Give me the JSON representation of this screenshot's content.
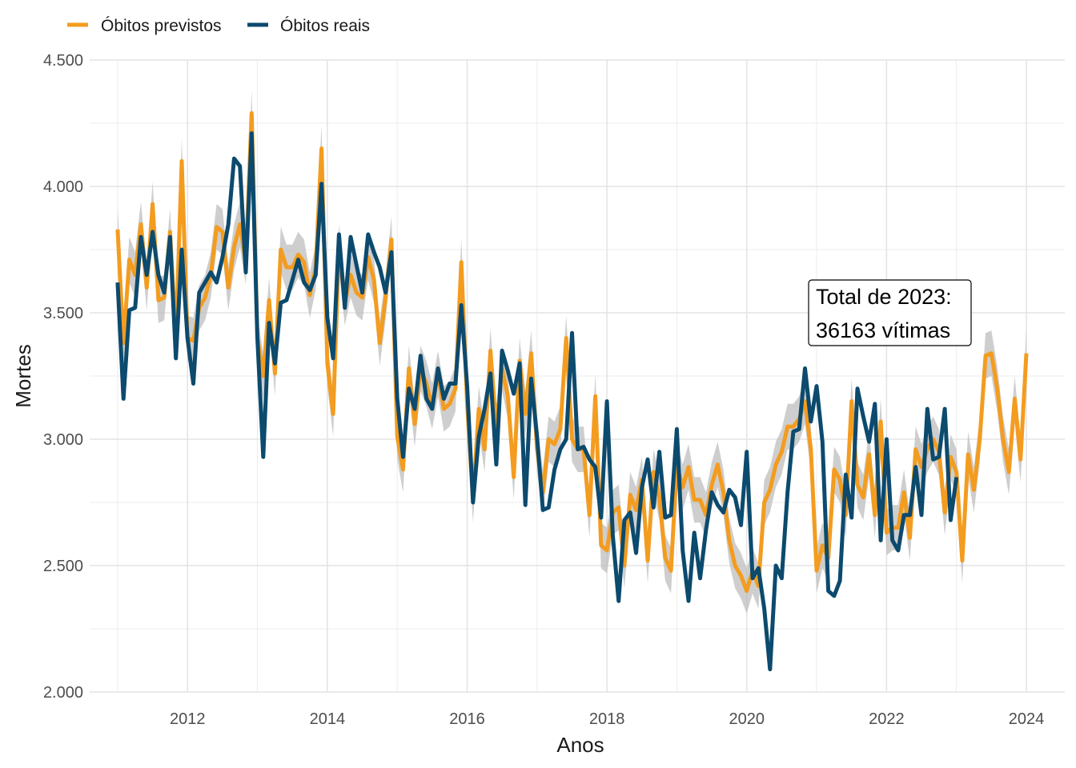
{
  "chart_data": {
    "type": "line",
    "xlabel": "Anos",
    "ylabel": "Mortes",
    "xlim": [
      2010.6,
      2024.55
    ],
    "ylim": [
      2000,
      4500
    ],
    "x_ticks": [
      2012,
      2014,
      2016,
      2018,
      2020,
      2022,
      2024
    ],
    "y_ticks": [
      2000,
      2500,
      3000,
      3500,
      4000,
      4500
    ],
    "y_tick_labels": [
      "2.000",
      "2.500",
      "3.000",
      "3.500",
      "4.000",
      "4.500"
    ],
    "grid": true,
    "legend_position": "top-left",
    "x_start": "2011-01",
    "x_step": "monthly",
    "series": [
      {
        "name": "Óbitos previstos",
        "color": "#F39C1F",
        "values": [
          3830,
          3380,
          3710,
          3650,
          3850,
          3600,
          3930,
          3550,
          3560,
          3820,
          3400,
          4100,
          3400,
          3390,
          3520,
          3560,
          3650,
          3840,
          3820,
          3600,
          3760,
          3850,
          3700,
          4290,
          3400,
          3250,
          3550,
          3260,
          3750,
          3680,
          3680,
          3730,
          3700,
          3570,
          3680,
          4150,
          3300,
          3100,
          3760,
          3540,
          3650,
          3580,
          3560,
          3720,
          3630,
          3380,
          3560,
          3790,
          3010,
          2880,
          3280,
          3060,
          3280,
          3220,
          3130,
          3260,
          3120,
          3140,
          3200,
          3700,
          3140,
          2760,
          3120,
          2960,
          3350,
          3040,
          3280,
          3170,
          2850,
          3310,
          3100,
          3340,
          2960,
          2790,
          3000,
          2980,
          3040,
          3400,
          3000,
          2960,
          2960,
          2700,
          3170,
          2580,
          2560,
          2710,
          2730,
          2500,
          2780,
          2720,
          2840,
          2520,
          2870,
          2770,
          2530,
          2480,
          2900,
          2810,
          2890,
          2760,
          2760,
          2700,
          2820,
          2900,
          2790,
          2600,
          2500,
          2460,
          2400,
          2480,
          2420,
          2750,
          2800,
          2900,
          2950,
          3050,
          3050,
          3080,
          3150,
          2960,
          2480,
          2580,
          2530,
          2880,
          2840,
          2700,
          3150,
          2820,
          2770,
          2940,
          2700,
          3070,
          2630,
          2650,
          2650,
          2790,
          2610,
          2960,
          2890,
          2960,
          3000,
          2950,
          2710,
          2930,
          2870,
          2520,
          2940,
          2800,
          3000,
          3330,
          3340,
          3200,
          3000,
          2870,
          3160,
          2920,
          3340
        ]
      },
      {
        "name": "Óbitos reais",
        "color": "#0C4A6E",
        "values": [
          3620,
          3160,
          3510,
          3520,
          3800,
          3650,
          3820,
          3650,
          3580,
          3800,
          3320,
          3750,
          3400,
          3220,
          3580,
          3620,
          3660,
          3620,
          3720,
          3850,
          4110,
          4080,
          3660,
          4210,
          3400,
          2930,
          3460,
          3300,
          3540,
          3550,
          3630,
          3710,
          3620,
          3590,
          3650,
          4010,
          3480,
          3320,
          3810,
          3520,
          3800,
          3690,
          3580,
          3810,
          3740,
          3680,
          3580,
          3740,
          3160,
          2930,
          3200,
          3120,
          3330,
          3160,
          3120,
          3280,
          3160,
          3220,
          3220,
          3530,
          3210,
          2750,
          3010,
          3120,
          3260,
          2900,
          3350,
          3270,
          3180,
          3300,
          2740,
          3240,
          3010,
          2720,
          2730,
          2880,
          2960,
          3000,
          3420,
          2960,
          2970,
          2920,
          2890,
          2690,
          3150,
          2620,
          2360,
          2680,
          2710,
          2550,
          2810,
          2920,
          2730,
          2950,
          2690,
          2700,
          3040,
          2560,
          2360,
          2630,
          2450,
          2640,
          2790,
          2740,
          2710,
          2800,
          2770,
          2660,
          2950,
          2450,
          2490,
          2330,
          2090,
          2500,
          2450,
          2790,
          3030,
          3040,
          3280,
          3070,
          3210,
          2990,
          2400,
          2380,
          2440,
          2860,
          2690,
          3200,
          3090,
          2990,
          3140,
          2600,
          3000,
          2600,
          2560,
          2700,
          2700,
          2890,
          2700,
          3120,
          2920,
          2930,
          3120,
          2680,
          2850
        ]
      }
    ],
    "annotation": {
      "line1": "Total de 2023:",
      "line2": "36163 vítimas"
    }
  }
}
